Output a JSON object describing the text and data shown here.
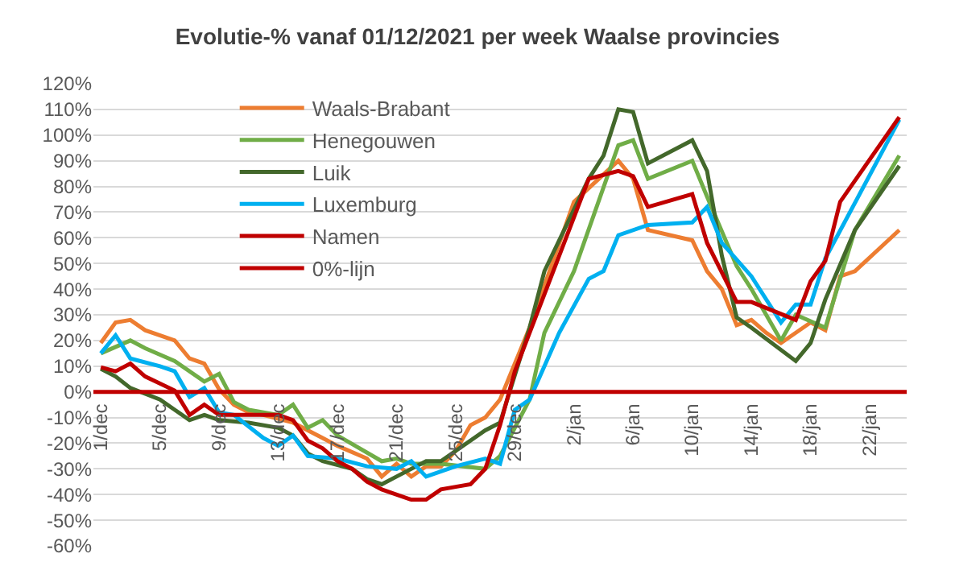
{
  "chart_data": {
    "type": "line",
    "title": "Evolutie-% vanaf 01/12/2021 per week Waalse provincies",
    "xlim": [
      "2021-11-30T12:00",
      "2022-01-24T12:00"
    ],
    "xticks": [
      {
        "value": "2021-12-01",
        "label": "1/dec"
      },
      {
        "value": "2021-12-05",
        "label": "5/dec"
      },
      {
        "value": "2021-12-09",
        "label": "9/dec"
      },
      {
        "value": "2021-12-13",
        "label": "13/dec"
      },
      {
        "value": "2021-12-17",
        "label": "17/dec"
      },
      {
        "value": "2021-12-21",
        "label": "21/dec"
      },
      {
        "value": "2021-12-25",
        "label": "25/dec"
      },
      {
        "value": "2021-12-29",
        "label": "29/dec"
      },
      {
        "value": "2022-01-02",
        "label": "2/jan"
      },
      {
        "value": "2022-01-06",
        "label": "6/jan"
      },
      {
        "value": "2022-01-10",
        "label": "10/jan"
      },
      {
        "value": "2022-01-14",
        "label": "14/jan"
      },
      {
        "value": "2022-01-18",
        "label": "18/jan"
      },
      {
        "value": "2022-01-22",
        "label": "22/jan"
      }
    ],
    "ylim": [
      -60,
      120
    ],
    "yticks": [
      {
        "value": -60,
        "label": "-60%"
      },
      {
        "value": -50,
        "label": "-50%"
      },
      {
        "value": -40,
        "label": "-40%"
      },
      {
        "value": -30,
        "label": "-30%"
      },
      {
        "value": -20,
        "label": "-20%"
      },
      {
        "value": -10,
        "label": "-10%"
      },
      {
        "value": 0,
        "label": "0%"
      },
      {
        "value": 10,
        "label": "10%"
      },
      {
        "value": 20,
        "label": "20%"
      },
      {
        "value": 30,
        "label": "30%"
      },
      {
        "value": 40,
        "label": "40%"
      },
      {
        "value": 50,
        "label": "50%"
      },
      {
        "value": 60,
        "label": "60%"
      },
      {
        "value": 70,
        "label": "70%"
      },
      {
        "value": 80,
        "label": "80%"
      },
      {
        "value": 90,
        "label": "90%"
      },
      {
        "value": 100,
        "label": "100%"
      },
      {
        "value": 110,
        "label": "110%"
      },
      {
        "value": 120,
        "label": "120%"
      }
    ],
    "grid": "y",
    "legend": "top left",
    "marker": "none",
    "line_style": "solid",
    "series": [
      {
        "name": "Waals-Brabant",
        "color": "#ed7d31",
        "x": [
          "2021-12-01",
          "2021-12-02",
          "2021-12-03",
          "2021-12-04",
          "2021-12-06",
          "2021-12-07",
          "2021-12-08",
          "2021-12-09",
          "2021-12-10",
          "2021-12-11",
          "2021-12-12",
          "2021-12-14",
          "2021-12-16",
          "2021-12-17",
          "2021-12-19",
          "2021-12-20",
          "2021-12-21",
          "2021-12-22",
          "2021-12-23",
          "2021-12-24",
          "2021-12-25",
          "2021-12-26",
          "2021-12-27",
          "2021-12-28",
          "2021-12-30",
          "2022-01-02",
          "2022-01-05",
          "2022-01-06",
          "2022-01-07",
          "2022-01-10",
          "2022-01-11",
          "2022-01-12",
          "2022-01-13",
          "2022-01-14",
          "2022-01-15",
          "2022-01-16",
          "2022-01-18",
          "2022-01-19",
          "2022-01-20",
          "2022-01-21",
          "2022-01-24"
        ],
        "values": [
          19,
          27,
          28,
          24,
          20,
          13,
          11,
          1,
          -5,
          -8,
          -9,
          -12,
          -18,
          -21,
          -26,
          -33,
          -28,
          -33,
          -29,
          -29,
          -23,
          -13,
          -10,
          -3,
          25,
          74,
          90,
          83,
          63,
          59,
          47,
          40,
          26,
          28,
          23,
          19,
          27,
          24,
          45,
          47,
          63
        ]
      },
      {
        "name": "Henegouwen",
        "color": "#70ad47",
        "x": [
          "2021-12-01",
          "2021-12-03",
          "2021-12-04",
          "2021-12-06",
          "2021-12-08",
          "2021-12-09",
          "2021-12-10",
          "2021-12-11",
          "2021-12-13",
          "2021-12-14",
          "2021-12-15",
          "2021-12-16",
          "2021-12-17",
          "2021-12-20",
          "2021-12-21",
          "2021-12-22",
          "2021-12-24",
          "2021-12-27",
          "2021-12-28",
          "2021-12-30",
          "2021-12-31",
          "2022-01-02",
          "2022-01-05",
          "2022-01-06",
          "2022-01-07",
          "2022-01-10",
          "2022-01-11",
          "2022-01-13",
          "2022-01-14",
          "2022-01-16",
          "2022-01-17",
          "2022-01-19",
          "2022-01-21",
          "2022-01-24"
        ],
        "values": [
          15,
          20,
          17,
          12,
          4,
          7,
          -4,
          -7,
          -9,
          -5,
          -14,
          -11,
          -17,
          -27,
          -26,
          -28,
          -28,
          -30,
          -25,
          -3,
          23,
          47,
          96,
          98,
          83,
          90,
          76,
          49,
          40,
          20,
          30,
          25,
          63,
          92
        ]
      },
      {
        "name": "Luik",
        "color": "#43682b",
        "x": [
          "2021-12-01",
          "2021-12-02",
          "2021-12-03",
          "2021-12-05",
          "2021-12-06",
          "2021-12-07",
          "2021-12-08",
          "2021-12-09",
          "2021-12-11",
          "2021-12-13",
          "2021-12-14",
          "2021-12-15",
          "2021-12-16",
          "2021-12-18",
          "2021-12-19",
          "2021-12-20",
          "2021-12-21",
          "2021-12-23",
          "2021-12-24",
          "2021-12-25",
          "2021-12-27",
          "2021-12-28",
          "2021-12-30",
          "2021-12-31",
          "2022-01-03",
          "2022-01-04",
          "2022-01-05",
          "2022-01-06",
          "2022-01-07",
          "2022-01-10",
          "2022-01-11",
          "2022-01-12",
          "2022-01-13",
          "2022-01-14",
          "2022-01-17",
          "2022-01-18",
          "2022-01-19",
          "2022-01-21",
          "2022-01-24"
        ],
        "values": [
          9,
          6,
          1.5,
          -3,
          -7,
          -11,
          -9,
          -11,
          -12,
          -14,
          -17,
          -24,
          -27,
          -30,
          -34,
          -36,
          -33,
          -27,
          -27,
          -23,
          -15,
          -12,
          25,
          47,
          83,
          92,
          110,
          109,
          89,
          98,
          86,
          53,
          29,
          25,
          12,
          19,
          36,
          63,
          88
        ]
      },
      {
        "name": "Luxemburg",
        "color": "#00b0f0",
        "x": [
          "2021-12-01",
          "2021-12-02",
          "2021-12-03",
          "2021-12-05",
          "2021-12-06",
          "2021-12-07",
          "2021-12-08",
          "2021-12-09",
          "2021-12-10",
          "2021-12-12",
          "2021-12-13",
          "2021-12-14",
          "2021-12-15",
          "2021-12-17",
          "2021-12-19",
          "2021-12-21",
          "2021-12-22",
          "2021-12-23",
          "2021-12-25",
          "2021-12-27",
          "2021-12-28",
          "2021-12-29",
          "2021-12-30",
          "2022-01-01",
          "2022-01-03",
          "2022-01-04",
          "2022-01-05",
          "2022-01-07",
          "2022-01-10",
          "2022-01-11",
          "2022-01-12",
          "2022-01-14",
          "2022-01-16",
          "2022-01-17",
          "2022-01-18",
          "2022-01-19",
          "2022-01-24"
        ],
        "values": [
          15,
          22,
          13,
          10,
          8,
          -2,
          1.5,
          -8,
          -9,
          -18,
          -21,
          -17,
          -25,
          -26,
          -29,
          -30,
          -27,
          -33,
          -29,
          -26,
          -28,
          -7,
          -3,
          23,
          44,
          47,
          61,
          65,
          66,
          72,
          58,
          45,
          27,
          34,
          34,
          52,
          106
        ]
      },
      {
        "name": "Namen",
        "color": "#c00000",
        "x": [
          "2021-12-01",
          "2021-12-02",
          "2021-12-03",
          "2021-12-04",
          "2021-12-06",
          "2021-12-07",
          "2021-12-08",
          "2021-12-09",
          "2021-12-11",
          "2021-12-13",
          "2021-12-14",
          "2021-12-15",
          "2021-12-16",
          "2021-12-17",
          "2021-12-18",
          "2021-12-19",
          "2021-12-20",
          "2021-12-22",
          "2021-12-23",
          "2021-12-24",
          "2021-12-25",
          "2021-12-26",
          "2021-12-27",
          "2021-12-28",
          "2021-12-29",
          "2021-12-30",
          "2022-01-03",
          "2022-01-05",
          "2022-01-06",
          "2022-01-07",
          "2022-01-10",
          "2022-01-11",
          "2022-01-13",
          "2022-01-14",
          "2022-01-17",
          "2022-01-18",
          "2022-01-19",
          "2022-01-20",
          "2022-01-24"
        ],
        "values": [
          9.6,
          8,
          11,
          6,
          0.5,
          -9,
          -5,
          -9,
          -9,
          -9,
          -11,
          -19,
          -22,
          -27,
          -30,
          -35,
          -38,
          -42,
          -42,
          -38,
          -37,
          -36,
          -30,
          -13,
          8,
          23,
          83,
          86,
          84,
          72,
          77,
          58,
          35,
          35,
          28,
          43,
          51,
          74,
          107
        ]
      },
      {
        "name": "0%-lijn",
        "color": "#c00000",
        "x": [
          "2021-11-30T12:00",
          "2021-12-15",
          "2021-12-31",
          "2022-01-15",
          "2022-01-24T12:00"
        ],
        "values": [
          0,
          0,
          0,
          0,
          0
        ]
      }
    ]
  }
}
